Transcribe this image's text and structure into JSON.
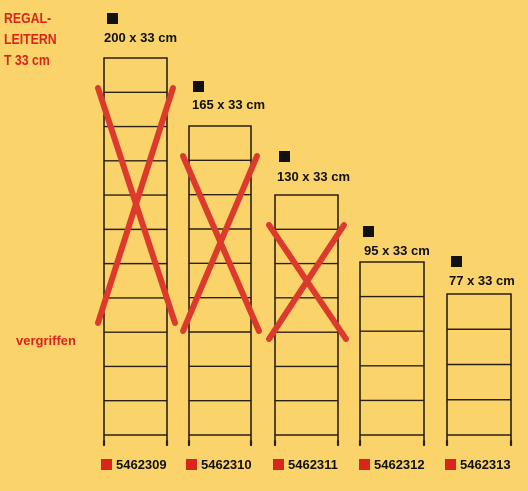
{
  "title": {
    "line1": "REGAL-",
    "line2": "LEITERN",
    "line3": "T 33 cm"
  },
  "status_label": "vergriffen",
  "colors": {
    "background": "#fad36a",
    "cross": "#dc3a2c",
    "accent": "#d8261c",
    "ladder": "#2a2018"
  },
  "ladders": [
    {
      "size": "200 x 33 cm",
      "article": "5462309",
      "rungs": 11,
      "sold_out": true
    },
    {
      "size": "165 x 33 cm",
      "article": "5462310",
      "rungs": 9,
      "sold_out": true
    },
    {
      "size": "130 x 33 cm",
      "article": "5462311",
      "rungs": 7,
      "sold_out": true
    },
    {
      "size": "95 x 33 cm",
      "article": "5462312",
      "rungs": 5,
      "sold_out": false
    },
    {
      "size": "77 x 33 cm",
      "article": "5462313",
      "rungs": 4,
      "sold_out": false
    }
  ]
}
